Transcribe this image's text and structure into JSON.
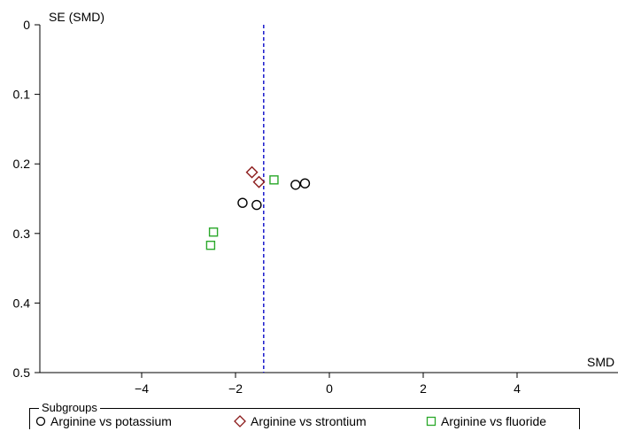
{
  "chart_data": {
    "type": "scatter",
    "title": "",
    "xlabel": "SMD",
    "ylabel": "SE (SMD)",
    "xlim": [
      -6.2,
      6.2
    ],
    "ylim": [
      0,
      0.5
    ],
    "y_inverted": true,
    "xticks": [
      -4,
      -2,
      0,
      2,
      4
    ],
    "xtick_labels": [
      "−4",
      "−2",
      "0",
      "2",
      "4"
    ],
    "yticks": [
      0,
      0.1,
      0.2,
      0.3,
      0.4,
      0.5
    ],
    "ytick_labels": [
      "0",
      "0.1",
      "0.2",
      "0.3",
      "0.4",
      "0.5"
    ],
    "grid": false,
    "reference_line": {
      "x": -1.4,
      "style": "dashed",
      "color": "#1a1acc"
    },
    "legend": {
      "title": "Subgroups",
      "placement": "bottom"
    },
    "series": [
      {
        "name": "Arginine vs potassium",
        "marker": "circle",
        "color": "#000000",
        "points": [
          [
            -1.85,
            0.256
          ],
          [
            -1.55,
            0.259
          ],
          [
            -0.72,
            0.23
          ],
          [
            -0.52,
            0.228
          ]
        ]
      },
      {
        "name": "Arginine vs strontium",
        "marker": "diamond",
        "color": "#8b1a1a",
        "points": [
          [
            -1.65,
            0.212
          ],
          [
            -1.5,
            0.226
          ]
        ]
      },
      {
        "name": "Arginine vs fluoride",
        "marker": "square",
        "color": "#2aa82a",
        "points": [
          [
            -1.18,
            0.223
          ],
          [
            -2.47,
            0.298
          ],
          [
            -2.53,
            0.317
          ]
        ]
      }
    ]
  }
}
